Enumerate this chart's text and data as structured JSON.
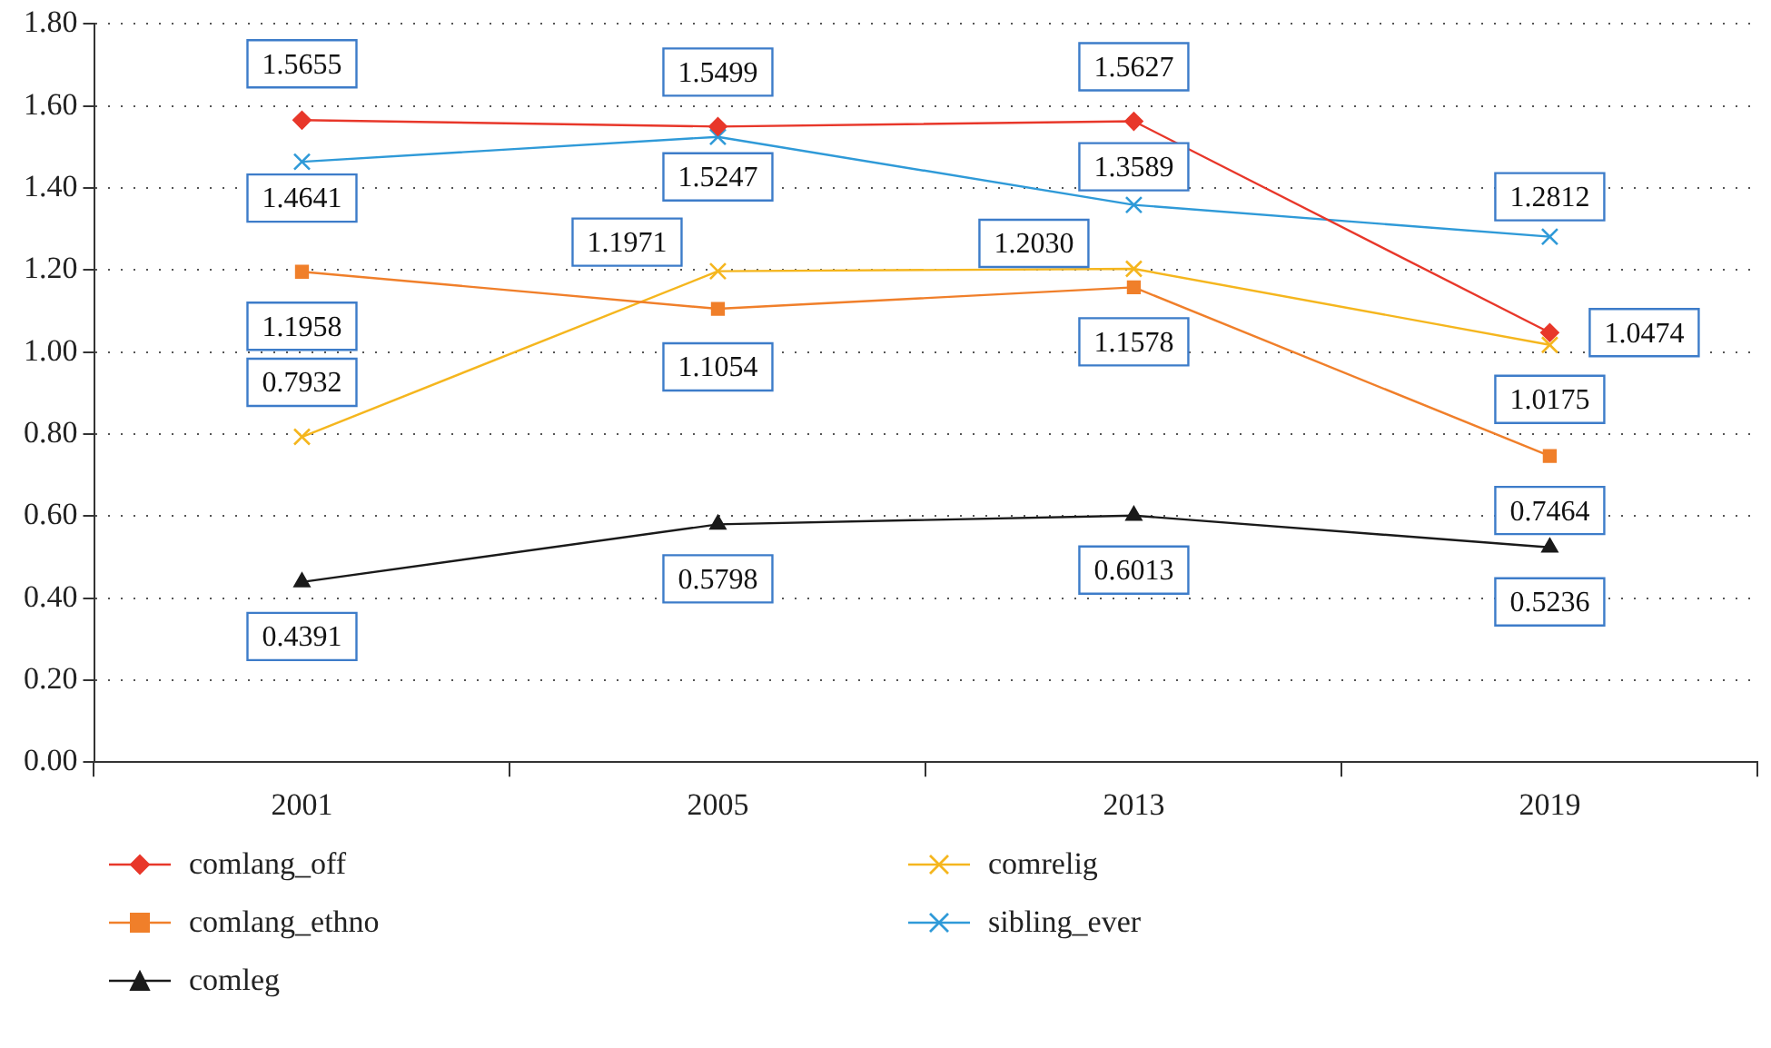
{
  "chart_data": {
    "type": "line",
    "categories": [
      "2001",
      "2005",
      "2013",
      "2019"
    ],
    "series": [
      {
        "name": "comlang_off",
        "color": "#e8372a",
        "marker": "diamond",
        "values": [
          1.5655,
          1.5499,
          1.5627,
          1.0474
        ],
        "value_labels": [
          "1.5655",
          "1.5499",
          "1.5627",
          "1.0474"
        ]
      },
      {
        "name": "comlang_ethno",
        "color": "#f07f2a",
        "marker": "square",
        "values": [
          1.1958,
          1.1054,
          1.1578,
          0.7464
        ],
        "value_labels": [
          "1.1958",
          "1.1054",
          "1.1578",
          "0.7464"
        ]
      },
      {
        "name": "comrelig",
        "color": "#f5b61e",
        "marker": "cross",
        "values": [
          0.7932,
          1.1971,
          1.203,
          1.0175
        ],
        "value_labels": [
          "0.7932",
          "1.1971",
          "1.2030",
          "1.0175"
        ]
      },
      {
        "name": "sibling_ever",
        "color": "#2f9ad8",
        "marker": "cross",
        "values": [
          1.4641,
          1.5247,
          1.3589,
          1.2812
        ],
        "value_labels": [
          "1.4641",
          "1.5247",
          "1.3589",
          "1.2812"
        ]
      },
      {
        "name": "comleg",
        "color": "#1a1a1a",
        "marker": "triangle",
        "values": [
          0.4391,
          0.5798,
          0.6013,
          0.5236
        ],
        "value_labels": [
          "0.4391",
          "0.5798",
          "0.6013",
          "0.5236"
        ]
      }
    ],
    "ylim": [
      0,
      1.8
    ],
    "yticks": [
      {
        "value": 0,
        "label": "0.00"
      },
      {
        "value": 0.2,
        "label": "0.20"
      },
      {
        "value": 0.4,
        "label": "0.40"
      },
      {
        "value": 0.6,
        "label": "0.60"
      },
      {
        "value": 0.8,
        "label": "0.80"
      },
      {
        "value": 1,
        "label": "1.00"
      },
      {
        "value": 1.2,
        "label": "1.20"
      },
      {
        "value": 1.4,
        "label": "1.40"
      },
      {
        "value": 1.6,
        "label": "1.60"
      },
      {
        "value": 1.8,
        "label": "1.80"
      }
    ],
    "grid": "y",
    "legend": "bottom",
    "line_style": "solid"
  }
}
